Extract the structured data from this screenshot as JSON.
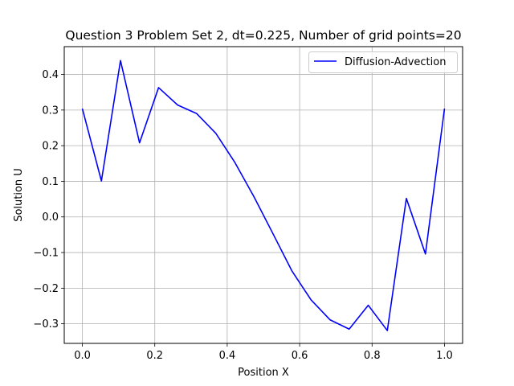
{
  "chart_data": {
    "type": "line",
    "title": "Question 3 Problem Set 2, dt=0.225, Number of grid points=20",
    "xlabel": "Position X",
    "ylabel": "Solution U",
    "xlim": [
      -0.05,
      1.05
    ],
    "ylim": [
      -0.355,
      0.478
    ],
    "xticks": [
      0.0,
      0.2,
      0.4,
      0.6,
      0.8,
      1.0
    ],
    "xtick_labels": [
      "0.0",
      "0.2",
      "0.4",
      "0.6",
      "0.8",
      "1.0"
    ],
    "yticks": [
      -0.3,
      -0.2,
      -0.1,
      0.0,
      0.1,
      0.2,
      0.3,
      0.4
    ],
    "ytick_labels": [
      "−0.3",
      "−0.2",
      "−0.1",
      "0.0",
      "0.1",
      "0.2",
      "0.3",
      "0.4"
    ],
    "grid": true,
    "legend_position": "top-right",
    "series": [
      {
        "name": "Diffusion-Advection",
        "color": "#0000ff",
        "x": [
          0.0,
          0.0526,
          0.1053,
          0.1579,
          0.2105,
          0.2632,
          0.3158,
          0.3684,
          0.4211,
          0.4737,
          0.5263,
          0.5789,
          0.6316,
          0.6842,
          0.7368,
          0.7895,
          0.8421,
          0.8947,
          0.9474,
          1.0
        ],
        "y": [
          0.304,
          0.101,
          0.439,
          0.208,
          0.363,
          0.314,
          0.29,
          0.235,
          0.153,
          0.057,
          -0.047,
          -0.152,
          -0.233,
          -0.289,
          -0.315,
          -0.248,
          -0.319,
          0.052,
          -0.104,
          0.304
        ]
      }
    ]
  }
}
